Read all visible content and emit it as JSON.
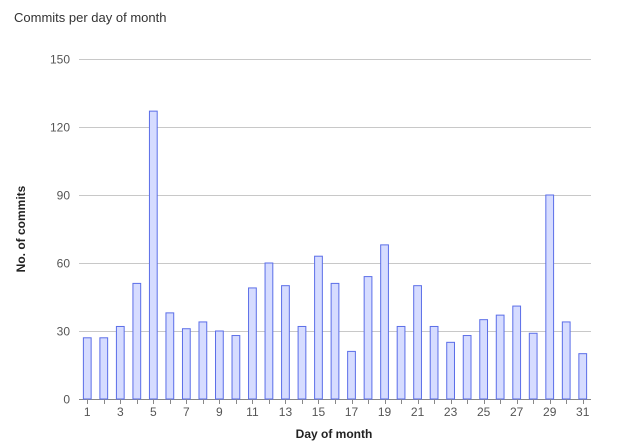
{
  "chart_data": {
    "type": "bar",
    "title": "Commits per day of month",
    "xlabel": "Day of month",
    "ylabel": "No. of commits",
    "categories": [
      1,
      2,
      3,
      4,
      5,
      6,
      7,
      8,
      9,
      10,
      11,
      12,
      13,
      14,
      15,
      16,
      17,
      18,
      19,
      20,
      21,
      22,
      23,
      24,
      25,
      26,
      27,
      28,
      29,
      30,
      31
    ],
    "x_tick_labels": [
      "1",
      "3",
      "5",
      "7",
      "9",
      "11",
      "13",
      "15",
      "17",
      "19",
      "21",
      "23",
      "25",
      "27",
      "29",
      "31"
    ],
    "y_ticks": [
      0,
      30,
      60,
      90,
      120,
      150
    ],
    "values": [
      27,
      27,
      32,
      51,
      127,
      38,
      31,
      34,
      30,
      28,
      49,
      60,
      50,
      32,
      63,
      51,
      21,
      54,
      68,
      32,
      50,
      32,
      25,
      28,
      35,
      37,
      41,
      29,
      90,
      34,
      20
    ],
    "ylim": [
      0,
      150
    ],
    "grid": true,
    "legend": "none",
    "colors": {
      "bar_fill": "#d6dcff",
      "bar_stroke": "#5b6ee8",
      "grid": "#c8c8c8",
      "axis": "#888888"
    }
  }
}
